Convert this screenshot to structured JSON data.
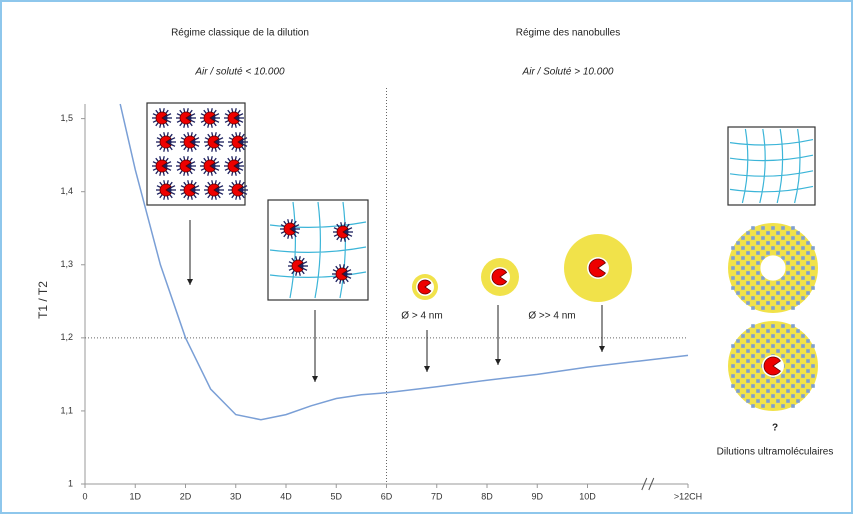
{
  "chart_data": {
    "type": "line",
    "ylabel": "T1 / T2",
    "annotations": [
      "Régime classique de la dilution",
      "Air / soluté < 10.000",
      "Régime des nanobulles",
      "Air / Soluté > 10.000",
      "Ø > 4 nm",
      "Ø >> 4 nm",
      "?",
      "Dilutions ultramoléculaires"
    ],
    "x": [
      7,
      10,
      15,
      20,
      25,
      30,
      35,
      40,
      45,
      50,
      55,
      60,
      70,
      80,
      90,
      100,
      110,
      120
    ],
    "series": [
      {
        "color": "#7a9fd6",
        "values": [
          1.52,
          1.43,
          1.3,
          1.2,
          1.13,
          1.095,
          1.088,
          1.095,
          1.107,
          1.117,
          1.122,
          1.125,
          1.133,
          1.142,
          1.15,
          1.16,
          1.168,
          1.176
        ]
      }
    ],
    "xlim": [
      0,
      120
    ],
    "xticks": [
      0,
      {
        "value": 10,
        "label": "1D"
      },
      {
        "value": 20,
        "label": "2D"
      },
      {
        "value": 30,
        "label": "3D"
      },
      {
        "value": 40,
        "label": "4D"
      },
      {
        "value": 50,
        "label": "5D"
      },
      {
        "value": 60,
        "label": "6D"
      },
      {
        "value": 70,
        "label": "7D"
      },
      {
        "value": 80,
        "label": "8D"
      },
      {
        "value": 90,
        "label": "9D"
      },
      {
        "value": 100,
        "label": "10D"
      },
      {
        "value": 120,
        "label": ">12CH"
      }
    ],
    "ylim": [
      1,
      1.52
    ],
    "yticks": [
      1,
      {
        "value": 1.1,
        "label": "1,1"
      },
      {
        "value": 1.2,
        "label": "1,2"
      },
      {
        "value": 1.3,
        "label": "1,3"
      },
      {
        "value": 1.4,
        "label": "1,4"
      },
      {
        "value": 1.5,
        "label": "1,5"
      }
    ],
    "vline": 60,
    "hline": 1.2
  }
}
